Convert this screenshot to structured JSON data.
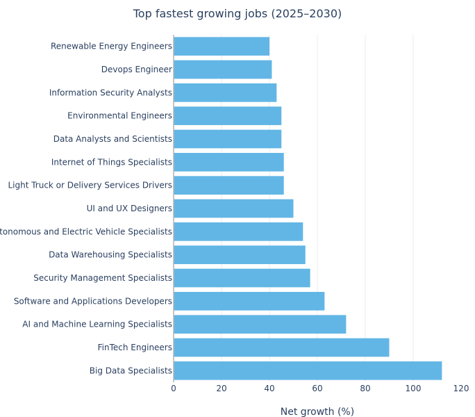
{
  "chart_data": {
    "type": "bar",
    "orientation": "horizontal",
    "title": "Top fastest growing jobs (2025–2030)",
    "xlabel": "Net growth (%)",
    "ylabel": "",
    "xlim": [
      0,
      120
    ],
    "xticks": [
      0,
      20,
      40,
      60,
      80,
      100,
      120
    ],
    "grid": true,
    "bar_color": "#62b6e5",
    "categories": [
      "Renewable Energy Engineers",
      "Devops Engineer",
      "Information Security Analysts",
      "Environmental Engineers",
      "Data Analysts and Scientists",
      "Internet of Things Specialists",
      "Light Truck or Delivery Services Drivers",
      "UI and UX Designers",
      "Autonomous and Electric Vehicle Specialists",
      "Data Warehousing Specialists",
      "Security Management Specialists",
      "Software and Applications Developers",
      "AI and Machine Learning Specialists",
      "FinTech Engineers",
      "Big Data Specialists"
    ],
    "values": [
      40,
      41,
      43,
      45,
      45,
      46,
      46,
      50,
      54,
      55,
      57,
      63,
      72,
      90,
      112
    ]
  }
}
